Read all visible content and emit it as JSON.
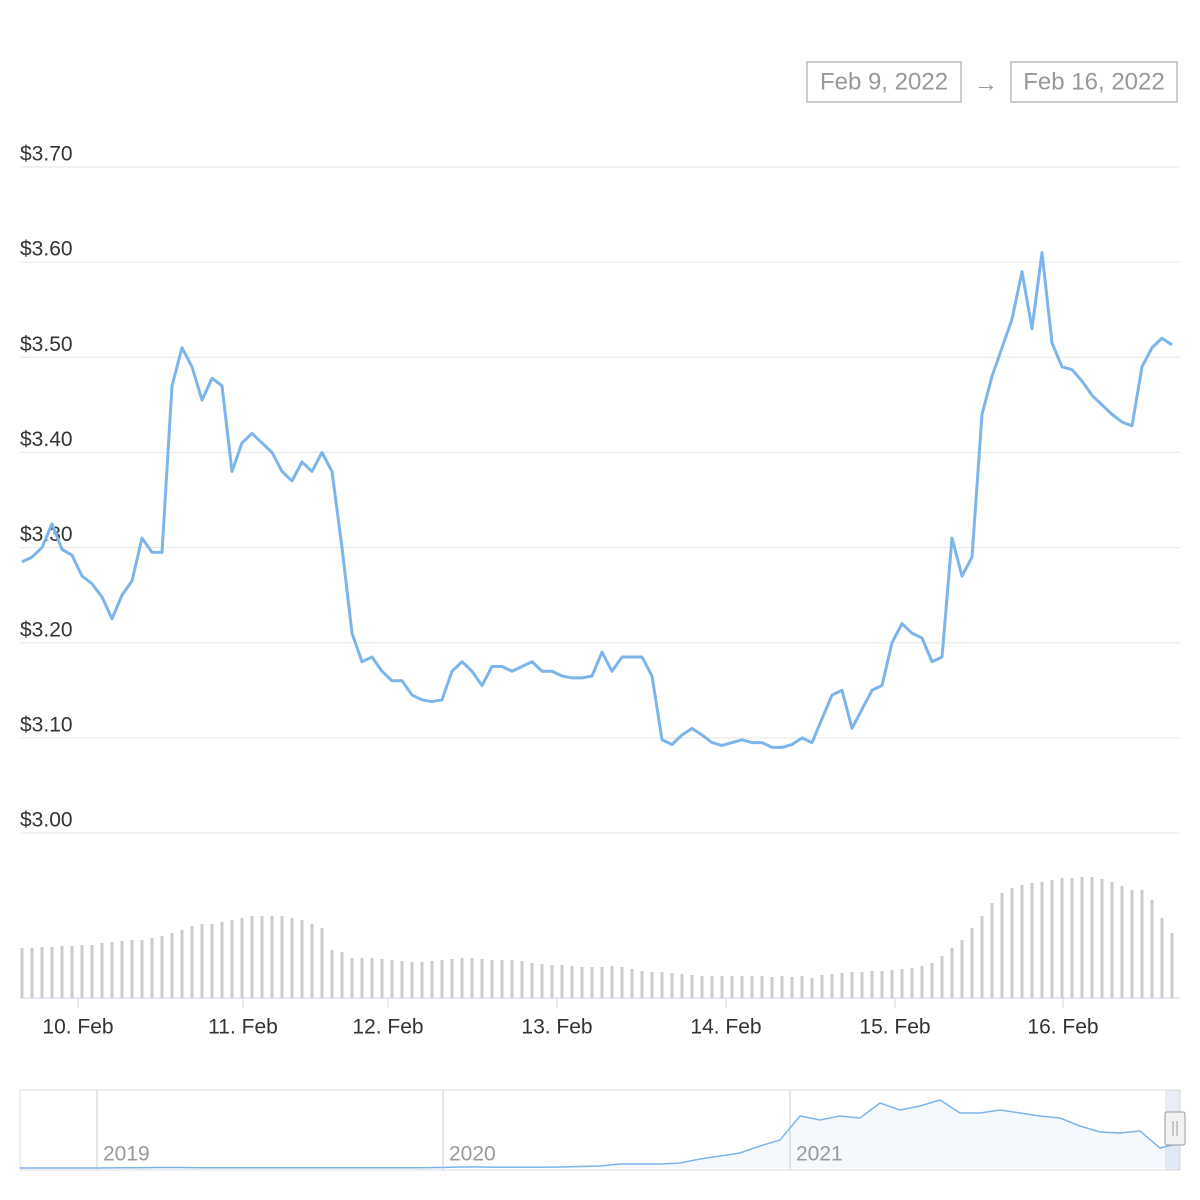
{
  "range": {
    "from": "Feb 9, 2022",
    "separator": "→",
    "to": "Feb 16, 2022"
  },
  "chart_data": [
    {
      "type": "line",
      "color": "#7cb5ec",
      "values": [
        3.285,
        3.29,
        3.3,
        3.325,
        3.298,
        3.292,
        3.27,
        3.262,
        3.248,
        3.225,
        3.25,
        3.265,
        3.31,
        3.295,
        3.295,
        3.47,
        3.51,
        3.49,
        3.455,
        3.478,
        3.47,
        3.38,
        3.41,
        3.42,
        3.41,
        3.4,
        3.38,
        3.37,
        3.39,
        3.38,
        3.4,
        3.38,
        3.3,
        3.21,
        3.18,
        3.185,
        3.17,
        3.16,
        3.16,
        3.145,
        3.14,
        3.138,
        3.14,
        3.17,
        3.18,
        3.17,
        3.155,
        3.175,
        3.175,
        3.17,
        3.175,
        3.18,
        3.17,
        3.17,
        3.165,
        3.163,
        3.163,
        3.165,
        3.19,
        3.17,
        3.185,
        3.185,
        3.185,
        3.165,
        3.098,
        3.093,
        3.103,
        3.11,
        3.103,
        3.095,
        3.092,
        3.095,
        3.098,
        3.095,
        3.095,
        3.09,
        3.09,
        3.093,
        3.1,
        3.095,
        3.12,
        3.145,
        3.15,
        3.11,
        3.13,
        3.15,
        3.155,
        3.2,
        3.22,
        3.21,
        3.205,
        3.18,
        3.185,
        3.31,
        3.27,
        3.29,
        3.44,
        3.48,
        3.51,
        3.54,
        3.59,
        3.53,
        3.61,
        3.515,
        3.49,
        3.487,
        3.475,
        3.46,
        3.45,
        3.44,
        3.432,
        3.428,
        3.49,
        3.51,
        3.52,
        3.513
      ],
      "xlim": [
        -0.2,
        115.8
      ],
      "ylim": [
        3.0,
        3.7
      ],
      "yticks": [
        {
          "value": 3.0,
          "label": "$3.00"
        },
        {
          "value": 3.1,
          "label": "$3.10"
        },
        {
          "value": 3.2,
          "label": "$3.20"
        },
        {
          "value": 3.3,
          "label": "$3.30"
        },
        {
          "value": 3.4,
          "label": "$3.40"
        },
        {
          "value": 3.5,
          "label": "$3.50"
        },
        {
          "value": 3.6,
          "label": "$3.60"
        },
        {
          "value": 3.7,
          "label": "$3.70"
        }
      ],
      "xticks": [
        {
          "value": 5.6,
          "label": "10. Feb"
        },
        {
          "value": 22.1,
          "label": "11. Feb"
        },
        {
          "value": 36.6,
          "label": "12. Feb"
        },
        {
          "value": 53.5,
          "label": "13. Feb"
        },
        {
          "value": 70.4,
          "label": "14. Feb"
        },
        {
          "value": 87.3,
          "label": "15. Feb"
        },
        {
          "value": 104.1,
          "label": "16. Feb"
        }
      ],
      "grid": true
    },
    {
      "type": "bar",
      "color": "#cccccc",
      "values": [
        50,
        50,
        51,
        51,
        52,
        52,
        53,
        53,
        55,
        56,
        57,
        58,
        58,
        60,
        62,
        65,
        68,
        72,
        74,
        74,
        76,
        78,
        80,
        82,
        82,
        82,
        82,
        80,
        78,
        74,
        70,
        48,
        46,
        40,
        40,
        40,
        39,
        38,
        37,
        36,
        36,
        37,
        38,
        39,
        40,
        40,
        39,
        38,
        38,
        38,
        37,
        35,
        34,
        33,
        33,
        32,
        31,
        31,
        31,
        32,
        31,
        29,
        27,
        26,
        26,
        25,
        24,
        23,
        22,
        22,
        22,
        22,
        22,
        22,
        22,
        21,
        22,
        21,
        22,
        20,
        23,
        24,
        25,
        26,
        26,
        27,
        27,
        28,
        29,
        30,
        32,
        35,
        42,
        50,
        58,
        70,
        82,
        95,
        105,
        110,
        113,
        115,
        116,
        118,
        120,
        120,
        121,
        121,
        119,
        116,
        112,
        108,
        108,
        98,
        80,
        65
      ],
      "xlim": [
        -0.2,
        115.8
      ],
      "ylim": [
        0,
        130
      ]
    },
    {
      "type": "area",
      "color": "#7cb5ec",
      "values": [
        0,
        0,
        0,
        0,
        0,
        0.3,
        0.3,
        0.5,
        0.5,
        0.3,
        0.3,
        0.3,
        0.3,
        0.3,
        0.3,
        0.3,
        0.3,
        0.3,
        0.3,
        0.3,
        0.3,
        0.5,
        1,
        1,
        0.8,
        0.8,
        0.8,
        1,
        1.5,
        2,
        4,
        4,
        4,
        5,
        9,
        12,
        15,
        22,
        28,
        52,
        48,
        52,
        50,
        65,
        58,
        62,
        68,
        55,
        55,
        58,
        55,
        52,
        50,
        42,
        36,
        35,
        37,
        20,
        25
      ],
      "xlim": [
        0,
        58
      ],
      "ylim": [
        0,
        80
      ],
      "xticks": [
        {
          "value": 3.85,
          "label": "2019"
        },
        {
          "value": 21.15,
          "label": "2020"
        },
        {
          "value": 38.5,
          "label": "2021"
        }
      ]
    }
  ]
}
